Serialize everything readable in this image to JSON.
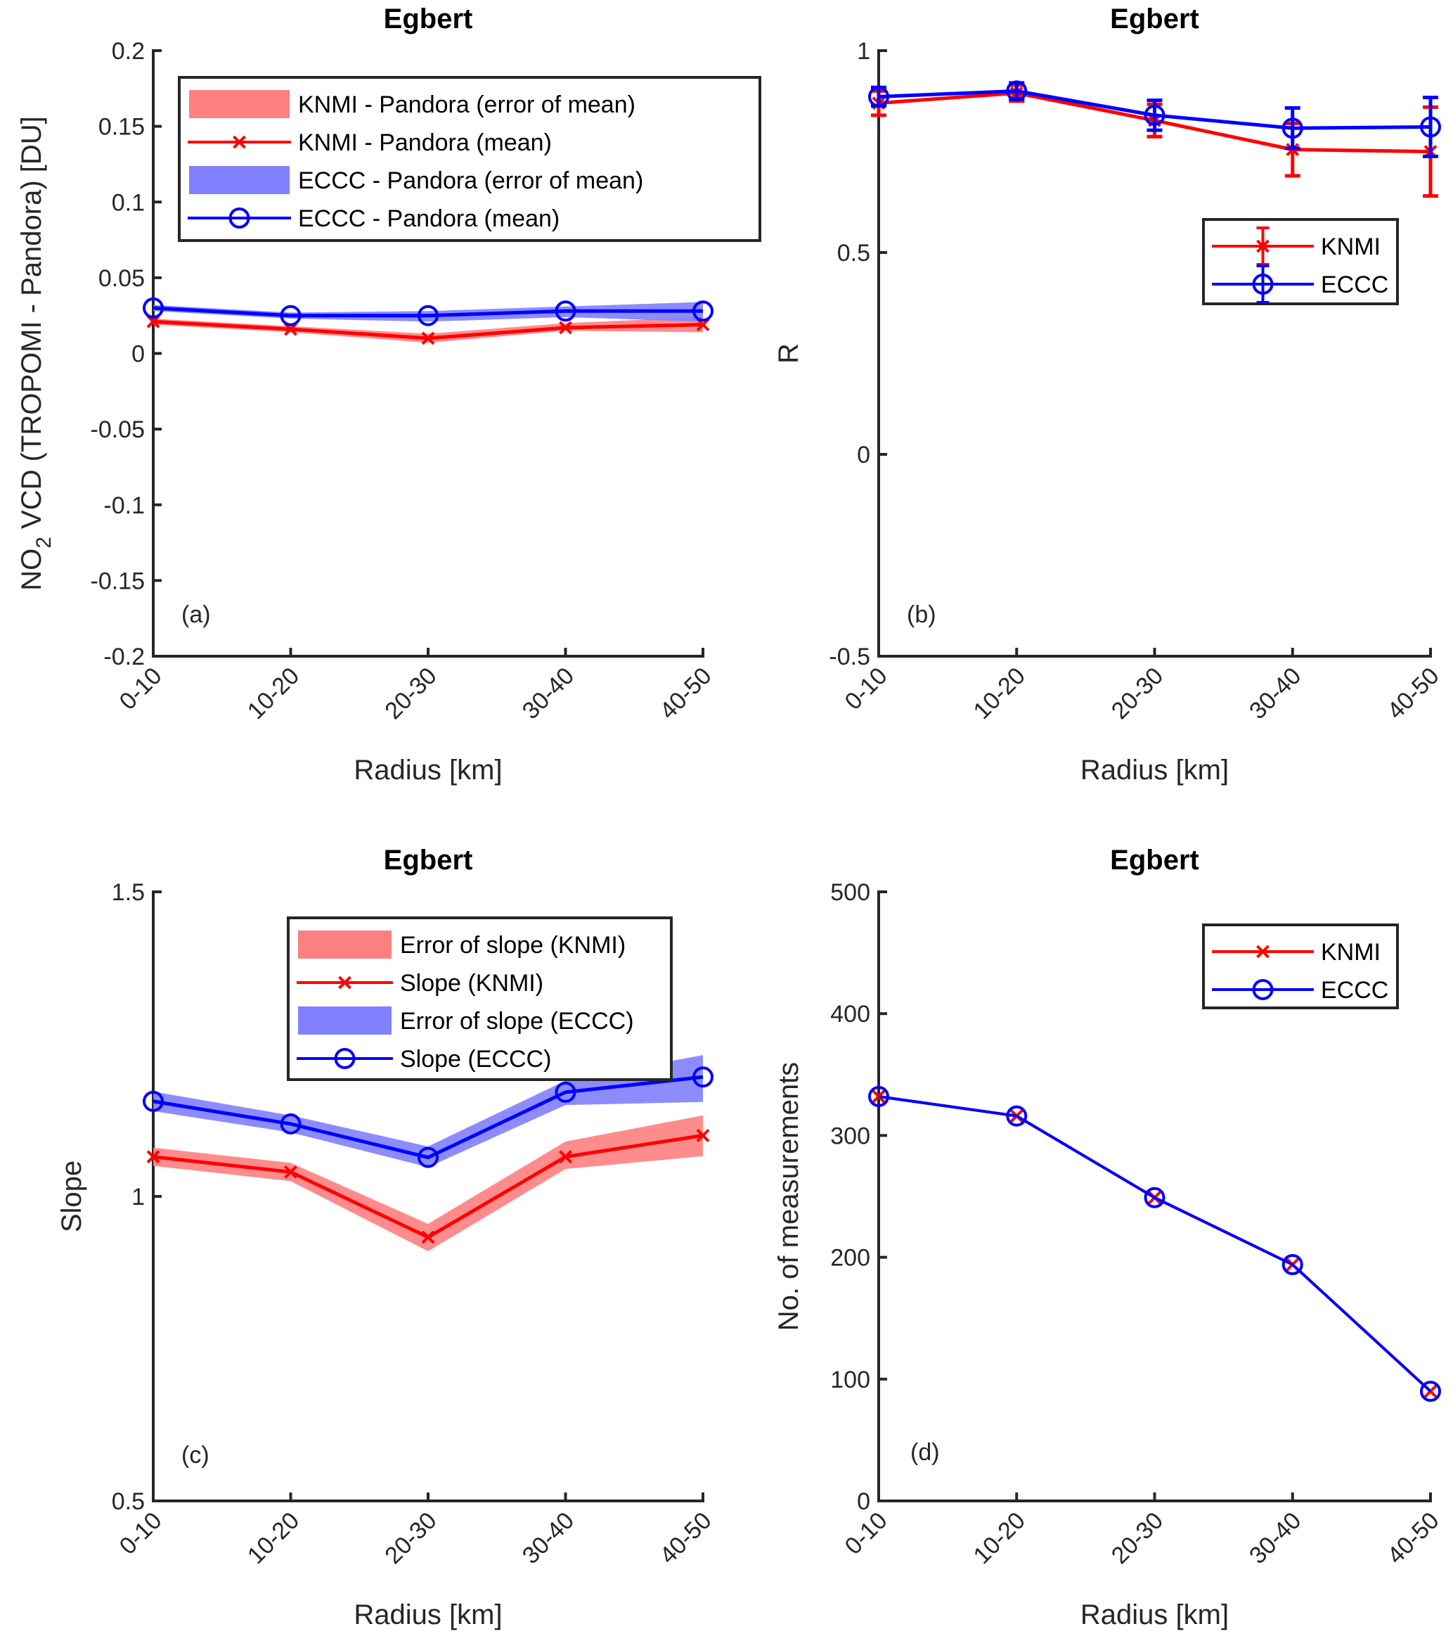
{
  "chart_data": [
    {
      "id": "a",
      "type": "line",
      "title": "Egbert",
      "panel_label": "(a)",
      "xlabel": "Radius [km]",
      "ylabel": "NO2 VCD (TROPOMI - Pandora) [DU]",
      "ylabel_parts": {
        "pre": "NO",
        "sub": "2",
        "post": " VCD (TROPOMI - Pandora) [DU]"
      },
      "categories": [
        "0-10",
        "10-20",
        "20-30",
        "30-40",
        "40-50"
      ],
      "ylim": [
        -0.2,
        0.2
      ],
      "yticks": [
        -0.2,
        -0.15,
        -0.1,
        -0.05,
        0,
        0.05,
        0.1,
        0.15,
        0.2
      ],
      "ytick_labels": [
        "-0.2",
        "-0.15",
        "-0.1",
        "-0.05",
        "0",
        "0.05",
        "0.1",
        "0.15",
        "0.2"
      ],
      "legend_position": "top",
      "series": [
        {
          "name": "KNMI - Pandora (mean)",
          "band_name": "KNMI - Pandora (error of mean)",
          "color": "#ff0000",
          "band_color": "#ff8080",
          "marker": "x",
          "values": [
            0.021,
            0.016,
            0.01,
            0.017,
            0.019
          ],
          "band_lower": [
            0.019,
            0.014,
            0.007,
            0.015,
            0.014
          ],
          "band_upper": [
            0.023,
            0.018,
            0.013,
            0.02,
            0.024
          ]
        },
        {
          "name": "ECCC - Pandora (mean)",
          "band_name": "ECCC - Pandora (error of mean)",
          "color": "#0000ff",
          "band_color": "#8080ff",
          "marker": "o",
          "values": [
            0.03,
            0.025,
            0.025,
            0.028,
            0.028
          ],
          "band_lower": [
            0.028,
            0.023,
            0.021,
            0.024,
            0.021
          ],
          "band_upper": [
            0.032,
            0.027,
            0.028,
            0.031,
            0.034
          ]
        }
      ],
      "legend": [
        "KNMI - Pandora (error of mean)",
        "KNMI - Pandora (mean)",
        "ECCC - Pandora (error of mean)",
        "ECCC - Pandora (mean)"
      ]
    },
    {
      "id": "b",
      "type": "line",
      "title": "Egbert",
      "panel_label": "(b)",
      "xlabel": "Radius [km]",
      "ylabel": "R",
      "categories": [
        "0-10",
        "10-20",
        "20-30",
        "30-40",
        "40-50"
      ],
      "ylim": [
        -0.5,
        1
      ],
      "yticks": [
        -0.5,
        0,
        0.5,
        1
      ],
      "ytick_labels": [
        "-0.5",
        "0",
        "0.5",
        "1"
      ],
      "legend_position": "upper-right",
      "series": [
        {
          "name": "KNMI",
          "color": "#ff0000",
          "marker": "x",
          "values": [
            0.87,
            0.895,
            0.827,
            0.755,
            0.75
          ],
          "errors": [
            0.03,
            0.02,
            0.04,
            0.065,
            0.11
          ]
        },
        {
          "name": "ECCC",
          "color": "#0000ff",
          "marker": "o",
          "values": [
            0.886,
            0.9,
            0.84,
            0.808,
            0.811
          ],
          "errors": [
            0.023,
            0.02,
            0.037,
            0.05,
            0.073
          ]
        }
      ],
      "legend": [
        "KNMI",
        "ECCC"
      ]
    },
    {
      "id": "c",
      "type": "line",
      "title": "Egbert",
      "panel_label": "(c)",
      "xlabel": "Radius [km]",
      "ylabel": "Slope",
      "categories": [
        "0-10",
        "10-20",
        "20-30",
        "30-40",
        "40-50"
      ],
      "ylim": [
        0.5,
        1.5
      ],
      "yticks": [
        0.5,
        1,
        1.5
      ],
      "ytick_labels": [
        "0.5",
        "1",
        "1.5"
      ],
      "legend_position": "top-right",
      "series": [
        {
          "name": "Slope (KNMI)",
          "band_name": "Error of slope (KNMI)",
          "color": "#ff0000",
          "band_color": "#ff8080",
          "marker": "x",
          "values": [
            1.065,
            1.04,
            0.933,
            1.065,
            1.1
          ],
          "band_lower": [
            1.05,
            1.025,
            0.91,
            1.045,
            1.066
          ],
          "band_upper": [
            1.08,
            1.055,
            0.955,
            1.09,
            1.133
          ]
        },
        {
          "name": "Slope (ECCC)",
          "band_name": "Error of slope (ECCC)",
          "color": "#0000ff",
          "band_color": "#8080ff",
          "marker": "o",
          "values": [
            1.156,
            1.119,
            1.064,
            1.171,
            1.196
          ],
          "band_lower": [
            1.14,
            1.105,
            1.048,
            1.15,
            1.155
          ],
          "band_upper": [
            1.172,
            1.133,
            1.082,
            1.19,
            1.232
          ]
        }
      ],
      "legend": [
        "Error of slope (KNMI)",
        "Slope (KNMI)",
        "Error of slope (ECCC)",
        "Slope (ECCC)"
      ]
    },
    {
      "id": "d",
      "type": "line",
      "title": "Egbert",
      "panel_label": "(d)",
      "xlabel": "Radius [km]",
      "ylabel": "No. of measurements",
      "categories": [
        "0-10",
        "10-20",
        "20-30",
        "30-40",
        "40-50"
      ],
      "ylim": [
        0,
        500
      ],
      "yticks": [
        0,
        100,
        200,
        300,
        400,
        500
      ],
      "ytick_labels": [
        "0",
        "100",
        "200",
        "300",
        "400",
        "500"
      ],
      "legend_position": "top-right",
      "series": [
        {
          "name": "KNMI",
          "color": "#ff0000",
          "marker": "x",
          "values": [
            332,
            316,
            249,
            194,
            90
          ]
        },
        {
          "name": "ECCC",
          "color": "#0000ff",
          "marker": "o",
          "values": [
            332,
            316,
            249,
            194,
            90
          ]
        }
      ],
      "legend": [
        "KNMI",
        "ECCC"
      ]
    }
  ]
}
